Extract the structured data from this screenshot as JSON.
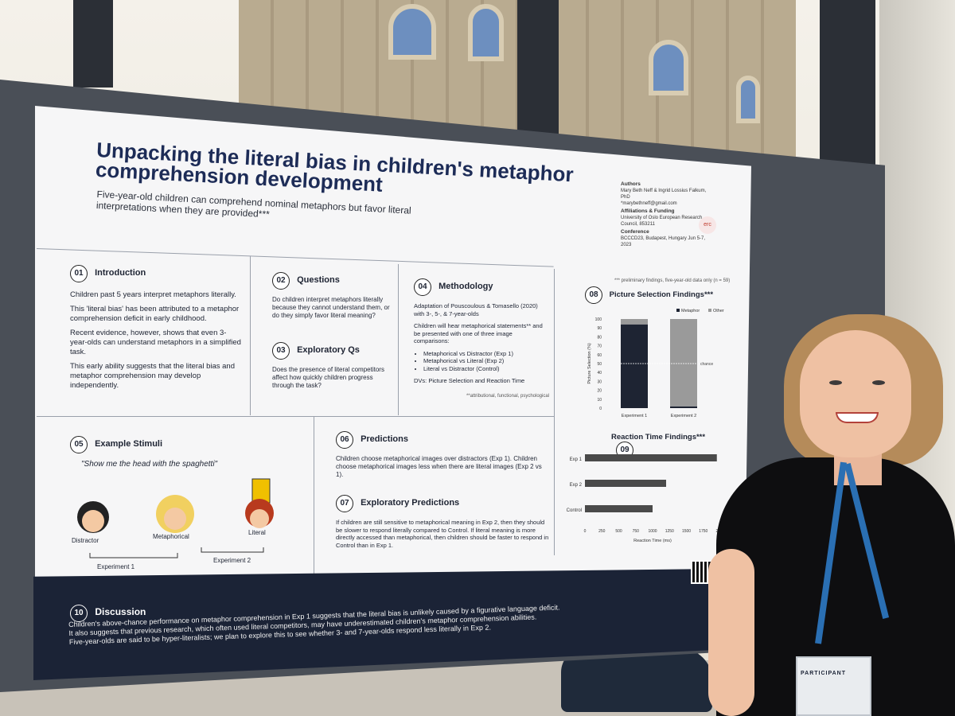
{
  "poster": {
    "title": "Unpacking the literal bias in children's metaphor comprehension development",
    "subtitle": "Five-year-old children can comprehend nominal metaphors but favor literal interpretations when they are provided***",
    "side_info": {
      "authors_label": "Authors",
      "authors": "Mary Beth Neff & Ingrid Lossius Falkum, PhD",
      "email": "*marybethneff@gmail.com",
      "funding_label": "Affiliations & Funding",
      "funding": "University of Oslo European Research Council, 853211",
      "conference_label": "Conference",
      "conference": "BCCCD23, Budapest, Hungary Jun 5-7, 2023",
      "erc_logo": "erc"
    },
    "preliminary_note": "*** preliminary findings, five-year-old data only (n = 59)",
    "sections": {
      "introduction": {
        "number": "01",
        "title": "Introduction",
        "p1": "Children past 5 years interpret metaphors literally.",
        "p2": "This 'literal bias' has been attributed to a metaphor comprehension deficit in early childhood.",
        "p3": "Recent evidence, however, shows that even 3-year-olds can understand metaphors in a simplified task.",
        "p4": "This early ability suggests that the literal bias and metaphor comprehension may develop independently."
      },
      "questions": {
        "number": "02",
        "title": "Questions",
        "p1": "Do children interpret metaphors literally because they cannot understand them, or do they simply favor literal meaning?"
      },
      "exploratory_qs": {
        "number": "03",
        "title": "Exploratory Qs",
        "p1": "Does the presence of literal competitors affect how quickly children progress through the task?"
      },
      "methodology": {
        "number": "04",
        "title": "Methodology",
        "p1": "Adaptation of Pouscoulous & Tomasello (2020) with 3-, 5-, & 7-year-olds",
        "p2": "Children will hear metaphorical statements** and be presented with one of three image comparisons:",
        "bullets": [
          "Metaphorical vs Distractor (Exp 1)",
          "Metaphorical vs Literal (Exp 2)",
          "Literal vs Distractor (Control)"
        ],
        "p3": "DVs: Picture Selection and Reaction Time",
        "footnote": "**attributional, functional, psychological"
      },
      "example_stimuli": {
        "number": "05",
        "title": "Example Stimuli",
        "quote": "\"Show me the head with the spaghetti\"",
        "labels": [
          "Distractor",
          "Metaphorical",
          "Literal"
        ],
        "exp1": "Experiment 1",
        "exp2": "Experiment 2"
      },
      "predictions": {
        "number": "06",
        "title": "Predictions",
        "p1": "Children choose metaphorical images over distractors (Exp 1). Children choose metaphorical images less when there are literal images (Exp 2 vs 1)."
      },
      "exploratory_predictions": {
        "number": "07",
        "title": "Exploratory Predictions",
        "p1": "If children are still sensitive to metaphorical meaning in Exp 2, then they should be slower to respond literally compared to Control. If literal meaning is more directly accessed than metaphorical, then children should be faster to respond in Control than in Exp 1."
      },
      "picture_selection": {
        "number": "08",
        "title": "Picture Selection Findings***"
      },
      "reaction_time": {
        "number": "09",
        "title": "Reaction Time Findings***"
      },
      "discussion": {
        "number": "10",
        "title": "Discussion",
        "p1": "Children's above-chance performance on metaphor comprehension in Exp 1 suggests that the literal bias is unlikely caused by a figurative language deficit.",
        "p2": "It also suggests that previous research, which often used literal competitors, may have underestimated children's metaphor comprehension abilities.",
        "p3": "Five-year-olds are said to be hyper-literalists; we plan to explore this to see whether 3- and 7-year-olds respond less literally in Exp 2."
      }
    },
    "badge_label": "PARTICIPANT"
  },
  "chart_data": [
    {
      "type": "bar",
      "title": "Picture Selection Findings***",
      "ylabel": "Picture Selection (%)",
      "categories": [
        "Experiment 1",
        "Experiment 2"
      ],
      "series": [
        {
          "name": "Metaphor",
          "values": [
            94,
            2
          ],
          "color": "#1e2433"
        },
        {
          "name": "Other",
          "values": [
            6,
            98
          ],
          "color": "#9a9a9a"
        }
      ],
      "ylim": [
        0,
        100
      ],
      "yticks": [
        "0",
        "10",
        "20",
        "30",
        "40",
        "50",
        "60",
        "70",
        "80",
        "90",
        "100"
      ],
      "chance_label": "chance",
      "chance_value": 50,
      "legend": "top-right"
    },
    {
      "type": "bar",
      "orientation": "horizontal",
      "title": "Reaction Time Findings***",
      "xlabel": "Reaction Time (ms)",
      "categories": [
        "Exp 1",
        "Exp 2",
        "Control"
      ],
      "values": [
        1950,
        1200,
        1000
      ],
      "xlim": [
        0,
        2000
      ],
      "xticks": [
        "0",
        "250",
        "500",
        "750",
        "1000",
        "1250",
        "1500",
        "1750",
        "2000"
      ],
      "color": "#4a4a4a"
    }
  ]
}
